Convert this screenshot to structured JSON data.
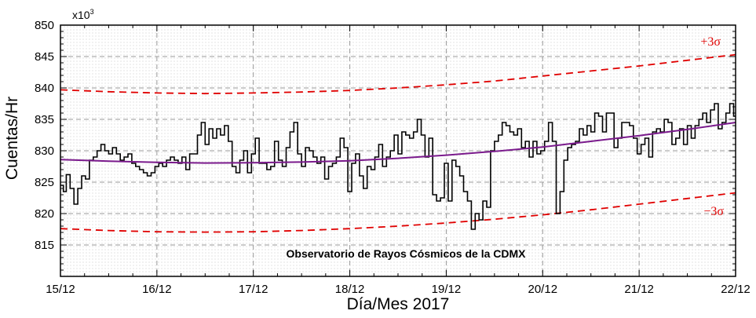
{
  "chart_data": {
    "type": "line",
    "xlabel": "Día/Mes 2017",
    "ylabel": "Cuentas/Hr",
    "multiplier_base": "x10",
    "multiplier_exp": "3",
    "annotation": "Observatorio de Rayos Cósmicos de la CDMX",
    "xlim": [
      0,
      7
    ],
    "ylim": [
      810,
      850
    ],
    "x_ticks": [
      {
        "value": 0,
        "label": "15/12"
      },
      {
        "value": 1,
        "label": "16/12"
      },
      {
        "value": 2,
        "label": "17/12"
      },
      {
        "value": 3,
        "label": "18/12"
      },
      {
        "value": 4,
        "label": "19/12"
      },
      {
        "value": 5,
        "label": "20/12"
      },
      {
        "value": 6,
        "label": "21/12"
      },
      {
        "value": 7,
        "label": "22/12"
      }
    ],
    "y_ticks": [
      815,
      820,
      825,
      830,
      835,
      840,
      845,
      850
    ],
    "grid": true,
    "colors": {
      "counts": "#000000",
      "fit": "#7a1a8c",
      "sigma": "#e00000",
      "grid": "#999999"
    },
    "sigma_labels": {
      "upper": "+3σ",
      "lower": "−3σ"
    },
    "counts_step": [
      [
        0.0,
        824.5
      ],
      [
        0.03,
        823.5
      ],
      [
        0.06,
        826.2
      ],
      [
        0.1,
        824.0
      ],
      [
        0.14,
        821.5
      ],
      [
        0.18,
        824.0
      ],
      [
        0.22,
        826.0
      ],
      [
        0.26,
        825.5
      ],
      [
        0.3,
        828.5
      ],
      [
        0.34,
        829.0
      ],
      [
        0.38,
        830.0
      ],
      [
        0.42,
        831.0
      ],
      [
        0.46,
        830.0
      ],
      [
        0.5,
        829.5
      ],
      [
        0.54,
        830.5
      ],
      [
        0.58,
        829.5
      ],
      [
        0.62,
        828.5
      ],
      [
        0.66,
        829.0
      ],
      [
        0.7,
        829.5
      ],
      [
        0.74,
        828.0
      ],
      [
        0.78,
        827.5
      ],
      [
        0.82,
        827.0
      ],
      [
        0.86,
        826.5
      ],
      [
        0.9,
        826.0
      ],
      [
        0.94,
        826.5
      ],
      [
        0.98,
        827.5
      ],
      [
        1.02,
        828.0
      ],
      [
        1.06,
        827.5
      ],
      [
        1.1,
        828.5
      ],
      [
        1.14,
        829.0
      ],
      [
        1.18,
        828.5
      ],
      [
        1.22,
        828.0
      ],
      [
        1.26,
        829.0
      ],
      [
        1.3,
        827.0
      ],
      [
        1.34,
        829.5
      ],
      [
        1.38,
        829.5
      ],
      [
        1.42,
        832.5
      ],
      [
        1.46,
        834.5
      ],
      [
        1.5,
        831.0
      ],
      [
        1.54,
        833.5
      ],
      [
        1.58,
        832.0
      ],
      [
        1.62,
        833.5
      ],
      [
        1.66,
        832.5
      ],
      [
        1.7,
        834.0
      ],
      [
        1.74,
        831.5
      ],
      [
        1.78,
        827.5
      ],
      [
        1.82,
        826.5
      ],
      [
        1.86,
        828.5
      ],
      [
        1.9,
        830.0
      ],
      [
        1.94,
        826.5
      ],
      [
        1.98,
        829.5
      ],
      [
        2.02,
        832.0
      ],
      [
        2.06,
        828.0
      ],
      [
        2.1,
        828.0
      ],
      [
        2.14,
        827.0
      ],
      [
        2.18,
        827.5
      ],
      [
        2.22,
        831.5
      ],
      [
        2.26,
        828.5
      ],
      [
        2.3,
        827.5
      ],
      [
        2.34,
        830.5
      ],
      [
        2.38,
        833.0
      ],
      [
        2.42,
        834.5
      ],
      [
        2.46,
        829.5
      ],
      [
        2.5,
        827.5
      ],
      [
        2.54,
        830.5
      ],
      [
        2.58,
        830.0
      ],
      [
        2.62,
        829.0
      ],
      [
        2.66,
        828.0
      ],
      [
        2.7,
        829.0
      ],
      [
        2.74,
        825.5
      ],
      [
        2.78,
        827.5
      ],
      [
        2.82,
        828.0
      ],
      [
        2.86,
        829.0
      ],
      [
        2.9,
        832.0
      ],
      [
        2.94,
        830.5
      ],
      [
        2.98,
        823.5
      ],
      [
        3.02,
        828.0
      ],
      [
        3.06,
        829.5
      ],
      [
        3.1,
        826.0
      ],
      [
        3.14,
        824.0
      ],
      [
        3.18,
        827.5
      ],
      [
        3.22,
        827.0
      ],
      [
        3.26,
        829.0
      ],
      [
        3.3,
        831.0
      ],
      [
        3.34,
        827.5
      ],
      [
        3.38,
        829.0
      ],
      [
        3.42,
        830.0
      ],
      [
        3.46,
        832.5
      ],
      [
        3.5,
        829.5
      ],
      [
        3.54,
        833.0
      ],
      [
        3.58,
        832.5
      ],
      [
        3.62,
        832.0
      ],
      [
        3.66,
        833.0
      ],
      [
        3.7,
        835.0
      ],
      [
        3.74,
        832.5
      ],
      [
        3.78,
        829.0
      ],
      [
        3.82,
        832.0
      ],
      [
        3.86,
        823.0
      ],
      [
        3.9,
        822.0
      ],
      [
        3.94,
        822.5
      ],
      [
        3.98,
        828.0
      ],
      [
        4.02,
        822.0
      ],
      [
        4.06,
        828.5
      ],
      [
        4.1,
        827.5
      ],
      [
        4.14,
        826.0
      ],
      [
        4.18,
        823.5
      ],
      [
        4.22,
        822.0
      ],
      [
        4.26,
        817.5
      ],
      [
        4.3,
        820.0
      ],
      [
        4.34,
        819.0
      ],
      [
        4.38,
        822.0
      ],
      [
        4.42,
        821.0
      ],
      [
        4.46,
        830.0
      ],
      [
        4.5,
        831.5
      ],
      [
        4.54,
        832.5
      ],
      [
        4.58,
        834.5
      ],
      [
        4.62,
        834.0
      ],
      [
        4.66,
        833.0
      ],
      [
        4.7,
        832.5
      ],
      [
        4.74,
        833.5
      ],
      [
        4.78,
        830.5
      ],
      [
        4.82,
        831.5
      ],
      [
        4.86,
        829.0
      ],
      [
        4.9,
        831.5
      ],
      [
        4.94,
        829.5
      ],
      [
        4.98,
        830.0
      ],
      [
        5.02,
        831.5
      ],
      [
        5.06,
        834.5
      ],
      [
        5.1,
        831.5
      ],
      [
        5.14,
        820.0
      ],
      [
        5.18,
        823.5
      ],
      [
        5.22,
        828.5
      ],
      [
        5.26,
        830.5
      ],
      [
        5.3,
        831.0
      ],
      [
        5.34,
        831.5
      ],
      [
        5.38,
        833.5
      ],
      [
        5.42,
        832.5
      ],
      [
        5.46,
        834.0
      ],
      [
        5.5,
        833.0
      ],
      [
        5.54,
        836.0
      ],
      [
        5.58,
        835.5
      ],
      [
        5.62,
        833.0
      ],
      [
        5.66,
        836.0
      ],
      [
        5.7,
        836.0
      ],
      [
        5.74,
        830.5
      ],
      [
        5.78,
        832.0
      ],
      [
        5.82,
        834.5
      ],
      [
        5.86,
        834.5
      ],
      [
        5.9,
        834.0
      ],
      [
        5.94,
        832.0
      ],
      [
        5.98,
        829.5
      ],
      [
        6.02,
        831.0
      ],
      [
        6.06,
        832.0
      ],
      [
        6.1,
        829.0
      ],
      [
        6.14,
        833.0
      ],
      [
        6.18,
        833.5
      ],
      [
        6.22,
        833.0
      ],
      [
        6.26,
        835.0
      ],
      [
        6.3,
        834.5
      ],
      [
        6.34,
        831.0
      ],
      [
        6.38,
        832.0
      ],
      [
        6.42,
        833.5
      ],
      [
        6.46,
        831.0
      ],
      [
        6.5,
        834.0
      ],
      [
        6.54,
        832.0
      ],
      [
        6.58,
        834.0
      ],
      [
        6.62,
        835.0
      ],
      [
        6.66,
        836.0
      ],
      [
        6.7,
        834.5
      ],
      [
        6.74,
        836.5
      ],
      [
        6.78,
        837.5
      ],
      [
        6.82,
        833.5
      ],
      [
        6.86,
        834.5
      ],
      [
        6.9,
        836.0
      ],
      [
        6.94,
        837.5
      ],
      [
        6.98,
        835.5
      ],
      [
        7.0,
        835.5
      ]
    ],
    "fit_curve": [
      [
        0.0,
        828.6
      ],
      [
        0.5,
        828.35
      ],
      [
        1.0,
        828.15
      ],
      [
        1.5,
        828.05
      ],
      [
        2.0,
        828.1
      ],
      [
        2.5,
        828.2
      ],
      [
        3.0,
        828.4
      ],
      [
        3.5,
        828.8
      ],
      [
        4.0,
        829.3
      ],
      [
        4.5,
        829.9
      ],
      [
        5.0,
        830.6
      ],
      [
        5.5,
        831.5
      ],
      [
        6.0,
        832.4
      ],
      [
        6.5,
        833.4
      ],
      [
        7.0,
        834.5
      ]
    ],
    "upper_sigma": [
      [
        0.0,
        839.7
      ],
      [
        0.5,
        839.4
      ],
      [
        1.0,
        839.2
      ],
      [
        1.5,
        839.1
      ],
      [
        2.0,
        839.2
      ],
      [
        2.5,
        839.35
      ],
      [
        3.0,
        839.6
      ],
      [
        3.5,
        840.0
      ],
      [
        4.0,
        840.5
      ],
      [
        4.5,
        841.1
      ],
      [
        5.0,
        841.9
      ],
      [
        5.5,
        842.7
      ],
      [
        6.0,
        843.5
      ],
      [
        6.5,
        844.4
      ],
      [
        7.0,
        845.3
      ]
    ],
    "lower_sigma": [
      [
        0.0,
        817.6
      ],
      [
        0.5,
        817.3
      ],
      [
        1.0,
        817.1
      ],
      [
        1.5,
        817.05
      ],
      [
        2.0,
        817.1
      ],
      [
        2.5,
        817.3
      ],
      [
        3.0,
        817.6
      ],
      [
        3.5,
        818.0
      ],
      [
        4.0,
        818.5
      ],
      [
        4.5,
        819.1
      ],
      [
        5.0,
        819.8
      ],
      [
        5.5,
        820.6
      ],
      [
        6.0,
        821.5
      ],
      [
        6.5,
        822.4
      ],
      [
        7.0,
        823.3
      ]
    ]
  }
}
